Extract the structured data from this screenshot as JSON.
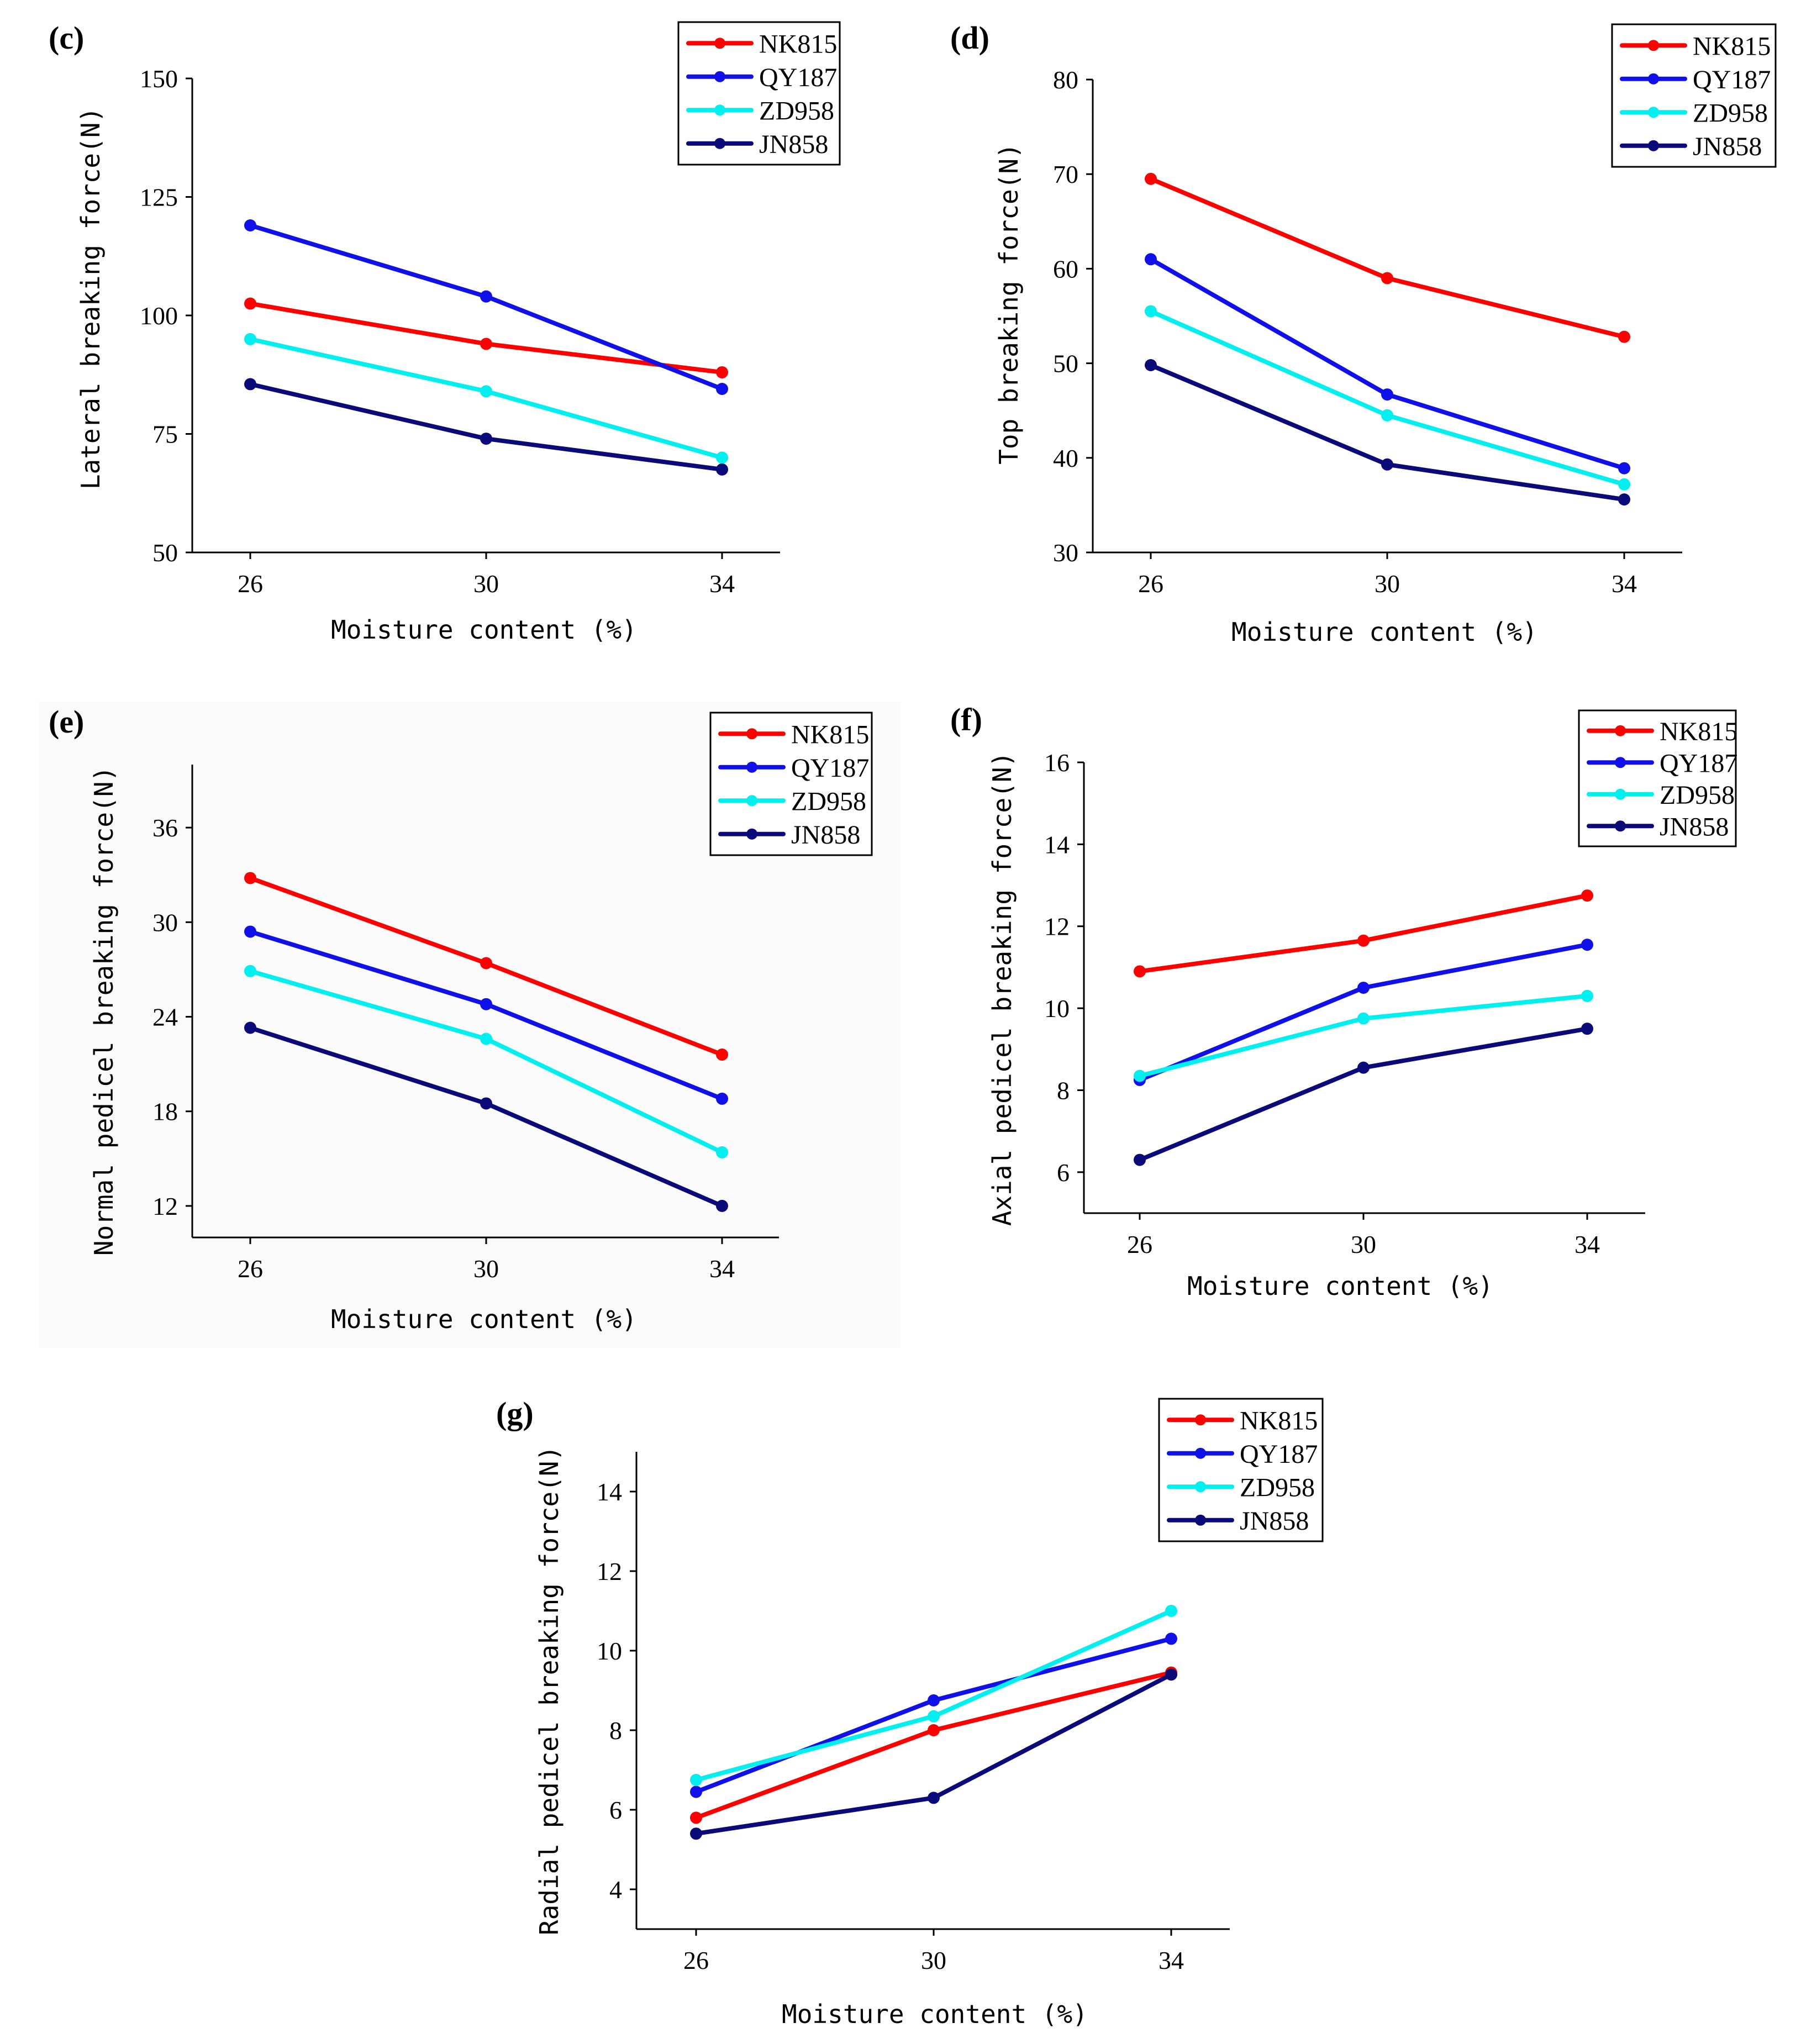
{
  "colors": {
    "NK815": "#ff0000",
    "QY187": "#1010e8",
    "ZD958": "#00f0f0",
    "JN858": "#0a0a78"
  },
  "chart_data": [
    {
      "panel": "(c)",
      "type": "line",
      "xlabel": "Moisture content (%)",
      "ylabel": "Lateral breaking force(N)",
      "categories": [
        "26",
        "30",
        "34"
      ],
      "ylim": [
        50,
        150
      ],
      "yticks": [
        50,
        75,
        100,
        125,
        150
      ],
      "series": [
        {
          "name": "NK815",
          "values": [
            102.5,
            94.0,
            88.0
          ]
        },
        {
          "name": "QY187",
          "values": [
            119.0,
            104.0,
            84.5
          ]
        },
        {
          "name": "ZD958",
          "values": [
            95.0,
            84.0,
            70.0
          ]
        },
        {
          "name": "JN858",
          "values": [
            85.5,
            74.0,
            67.5
          ]
        }
      ]
    },
    {
      "panel": "(d)",
      "type": "line",
      "xlabel": "Moisture content (%)",
      "ylabel": "Top breaking force(N)",
      "categories": [
        "26",
        "30",
        "34"
      ],
      "ylim": [
        30,
        80
      ],
      "yticks": [
        30,
        40,
        50,
        60,
        70,
        80
      ],
      "series": [
        {
          "name": "NK815",
          "values": [
            69.5,
            59.0,
            52.8
          ]
        },
        {
          "name": "QY187",
          "values": [
            61.0,
            46.7,
            38.9
          ]
        },
        {
          "name": "ZD958",
          "values": [
            55.5,
            44.5,
            37.2
          ]
        },
        {
          "name": "JN858",
          "values": [
            49.8,
            39.3,
            35.6
          ]
        }
      ]
    },
    {
      "panel": "(e)",
      "type": "line",
      "xlabel": "Moisture content (%)",
      "ylabel": "Normal pedicel breaking force(N)",
      "categories": [
        "26",
        "30",
        "34"
      ],
      "ylim": [
        10,
        40
      ],
      "yticks": [
        12,
        18,
        24,
        30,
        36
      ],
      "series": [
        {
          "name": "NK815",
          "values": [
            32.8,
            27.4,
            21.6
          ]
        },
        {
          "name": "QY187",
          "values": [
            29.4,
            24.8,
            18.8
          ]
        },
        {
          "name": "ZD958",
          "values": [
            26.9,
            22.6,
            15.4
          ]
        },
        {
          "name": "JN858",
          "values": [
            23.3,
            18.5,
            12.0
          ]
        }
      ]
    },
    {
      "panel": "(f)",
      "type": "line",
      "xlabel": "Moisture content (%)",
      "ylabel": "Axial pedicel breaking force(N)",
      "categories": [
        "26",
        "30",
        "34"
      ],
      "ylim": [
        5,
        16
      ],
      "yticks": [
        6,
        8,
        10,
        12,
        14,
        16
      ],
      "series": [
        {
          "name": "NK815",
          "values": [
            10.9,
            11.65,
            12.75
          ]
        },
        {
          "name": "QY187",
          "values": [
            8.25,
            10.5,
            11.55
          ]
        },
        {
          "name": "ZD958",
          "values": [
            8.35,
            9.75,
            10.3
          ]
        },
        {
          "name": "JN858",
          "values": [
            6.3,
            8.55,
            9.5
          ]
        }
      ]
    },
    {
      "panel": "(g)",
      "type": "line",
      "xlabel": "Moisture content (%)",
      "ylabel": "Radial pedicel breaking force(N)",
      "categories": [
        "26",
        "30",
        "34"
      ],
      "ylim": [
        3,
        15
      ],
      "yticks": [
        4,
        6,
        8,
        10,
        12,
        14
      ],
      "series": [
        {
          "name": "NK815",
          "values": [
            5.8,
            8.0,
            9.45
          ]
        },
        {
          "name": "QY187",
          "values": [
            6.45,
            8.75,
            10.3
          ]
        },
        {
          "name": "ZD958",
          "values": [
            6.75,
            8.35,
            11.0
          ]
        },
        {
          "name": "JN858",
          "values": [
            5.4,
            6.3,
            9.4
          ]
        }
      ]
    }
  ]
}
